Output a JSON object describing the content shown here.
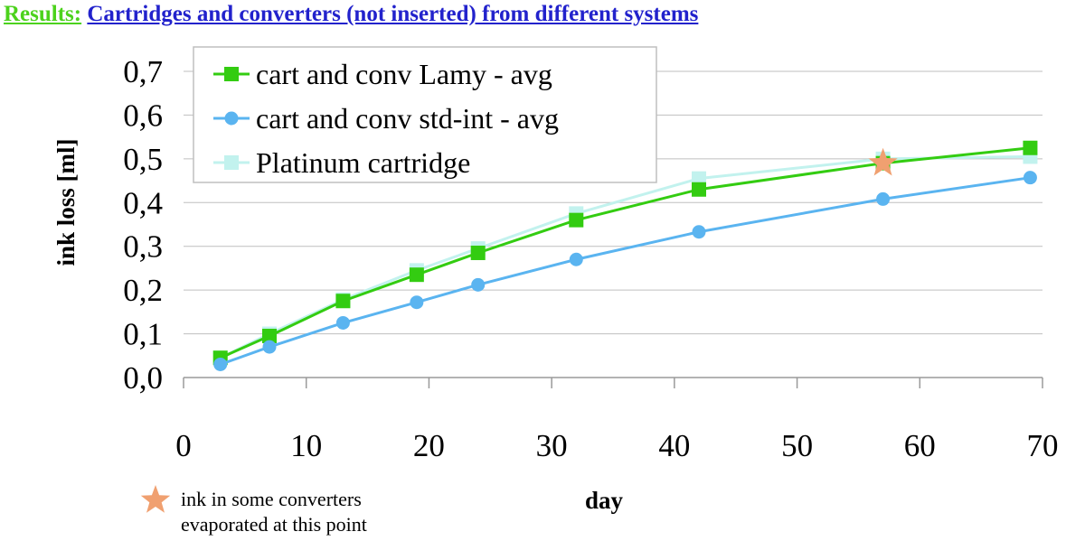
{
  "header": {
    "prefix": "Results:",
    "title": "Cartridges and converters (not inserted) from different systems"
  },
  "chart_data": {
    "type": "line",
    "title": "Results: Cartridges and converters (not inserted) from different systems",
    "xlabel": "day",
    "ylabel": "ink loss [ml]",
    "xlim": [
      0,
      70
    ],
    "ylim": [
      0,
      0.7
    ],
    "xticks": [
      0,
      10,
      20,
      30,
      40,
      50,
      60,
      70
    ],
    "xtick_labels": [
      "0",
      "10",
      "20",
      "30",
      "40",
      "50",
      "60",
      "70"
    ],
    "yticks": [
      0,
      0.1,
      0.2,
      0.3,
      0.4,
      0.5,
      0.6,
      0.7
    ],
    "ytick_labels": [
      "0,0",
      "0,1",
      "0,2",
      "0,3",
      "0,4",
      "0,5",
      "0,6",
      "0,7"
    ],
    "grid": "horizontal",
    "legend_position": "top-left",
    "series": [
      {
        "name": "cart and conv Lamy - avg",
        "color": "#33cc11",
        "marker": "square",
        "x": [
          3,
          7,
          13,
          19,
          24,
          32,
          42,
          57,
          69
        ],
        "y": [
          0.045,
          0.095,
          0.175,
          0.235,
          0.285,
          0.36,
          0.43,
          0.49,
          0.525
        ]
      },
      {
        "name": "cart and conv std-int - avg",
        "color": "#5ab4f0",
        "marker": "circle",
        "x": [
          3,
          7,
          13,
          19,
          24,
          32,
          42,
          57,
          69
        ],
        "y": [
          0.03,
          0.07,
          0.125,
          0.172,
          0.212,
          0.27,
          0.333,
          0.408,
          0.457
        ]
      },
      {
        "name": "Platinum cartridge",
        "color": "#c2f2ee",
        "marker": "square",
        "x": [
          3,
          7,
          13,
          19,
          24,
          32,
          42,
          57,
          69
        ],
        "y": [
          0.045,
          0.1,
          0.178,
          0.245,
          0.295,
          0.375,
          0.455,
          0.5,
          0.505
        ]
      }
    ],
    "annotation": {
      "marker": "star",
      "color": "#f0a070",
      "x": 57,
      "y": 0.49,
      "text_lines": [
        "ink in some converters",
        "evaporated at this point"
      ]
    }
  }
}
